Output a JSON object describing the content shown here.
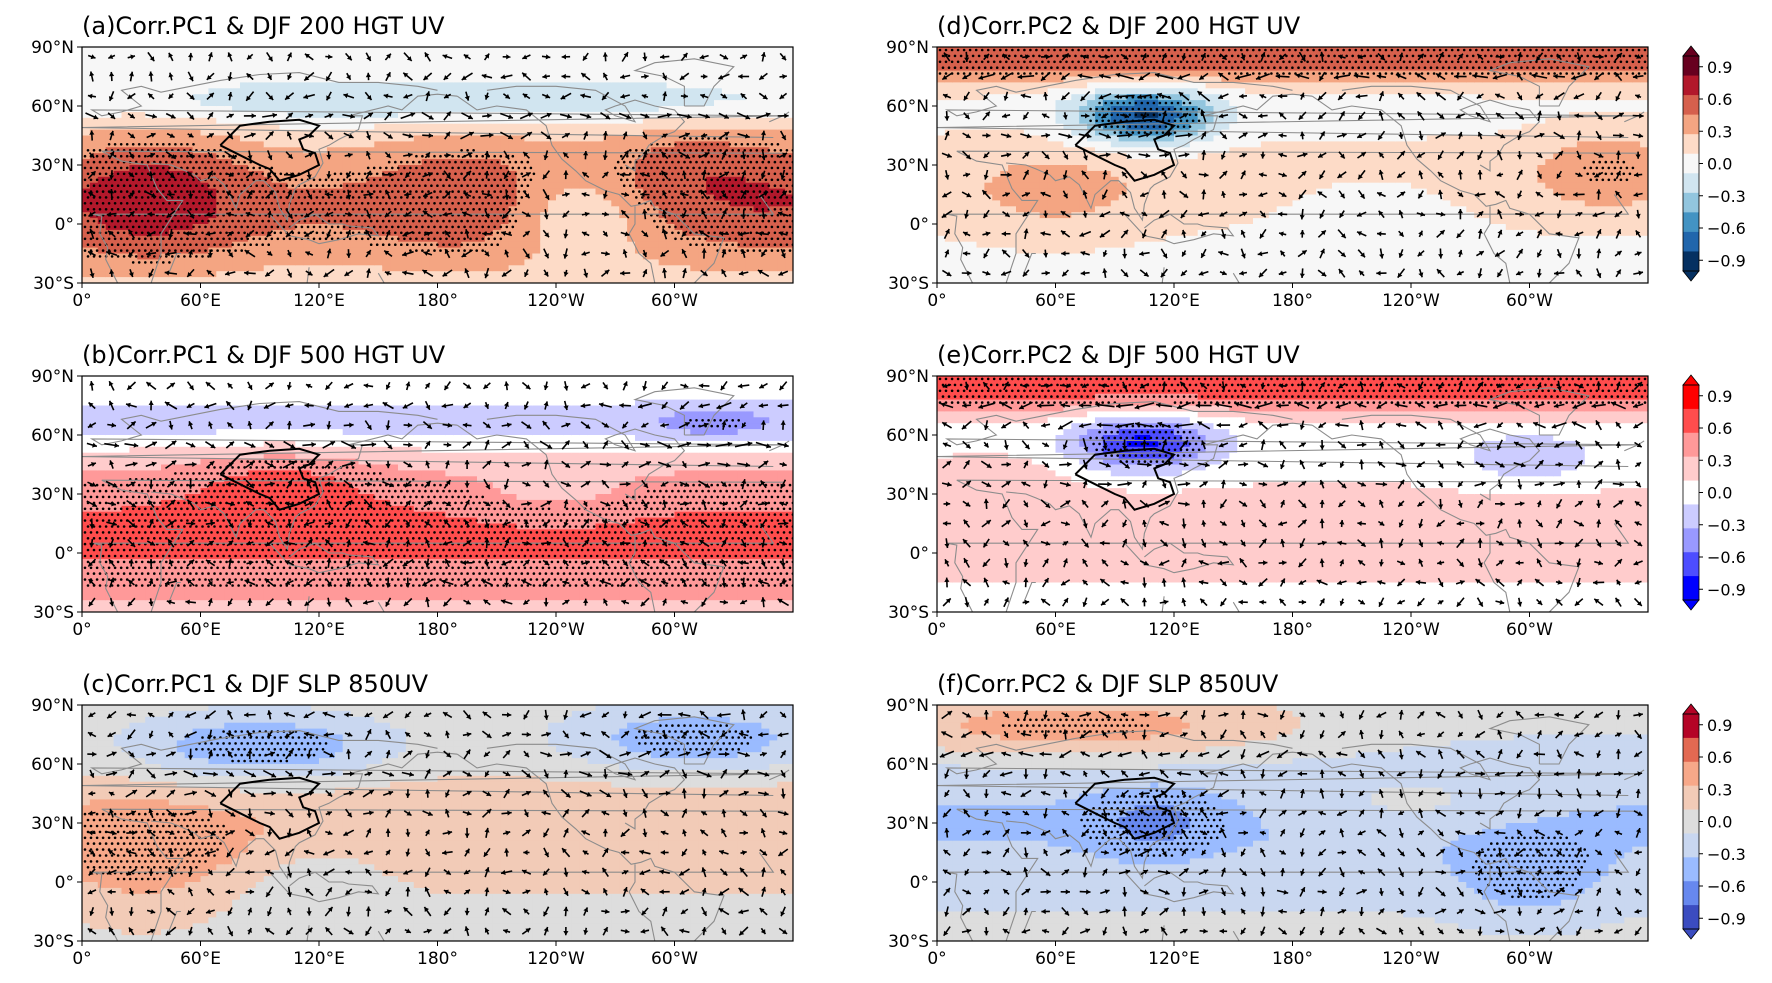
{
  "figure": {
    "panels": [
      {
        "id": "a",
        "title": "(a)Corr.PC1 & DJF 200 HGT UV",
        "scheme": "rdbu",
        "field": "pc1_200"
      },
      {
        "id": "b",
        "title": "(b)Corr.PC1 & DJF 500 HGT UV",
        "scheme": "bwr",
        "field": "pc1_500"
      },
      {
        "id": "c",
        "title": "(c)Corr.PC1 & DJF SLP 850UV",
        "scheme": "coolwarm",
        "field": "pc1_slp"
      },
      {
        "id": "d",
        "title": "(d)Corr.PC2 & DJF 200 HGT UV",
        "scheme": "rdbu",
        "field": "pc2_200"
      },
      {
        "id": "e",
        "title": "(e)Corr.PC2 & DJF 500 HGT UV",
        "scheme": "bwr",
        "field": "pc2_500"
      },
      {
        "id": "f",
        "title": "(f)Corr.PC2 & DJF SLP 850UV",
        "scheme": "coolwarm",
        "field": "pc2_slp"
      }
    ],
    "lat_ticks": [
      "90°N",
      "60°N",
      "30°N",
      "0°",
      "30°S"
    ],
    "lon_ticks": [
      "0°",
      "60°E",
      "120°E",
      "180°",
      "120°W",
      "60°W"
    ],
    "colorbars": [
      {
        "scheme": "rdbu",
        "ticks": [
          "0.9",
          "0.6",
          "0.3",
          "0.0",
          "−0.3",
          "−0.6",
          "−0.9"
        ]
      },
      {
        "scheme": "bwr",
        "ticks": [
          "0.9",
          "0.6",
          "0.3",
          "0.0",
          "−0.3",
          "−0.6",
          "−0.9"
        ]
      },
      {
        "scheme": "coolwarm",
        "ticks": [
          "0.9",
          "0.6",
          "0.3",
          "0.0",
          "−0.3",
          "−0.6",
          "−0.9"
        ]
      }
    ],
    "colors": {
      "rdbu": [
        "#053061",
        "#2166ac",
        "#4393c3",
        "#92c5de",
        "#d1e5f0",
        "#f7f7f7",
        "#fddbc7",
        "#f4a582",
        "#d6604d",
        "#b2182b",
        "#67001f"
      ],
      "bwr": [
        "#0000ff",
        "#4d4dff",
        "#9999ff",
        "#ccccff",
        "#ffffff",
        "#ffcccc",
        "#ff9999",
        "#ff4d4d",
        "#ff0000"
      ],
      "coolwarm": [
        "#3b4cc0",
        "#6788ee",
        "#9abbff",
        "#c9d7f0",
        "#dddddd",
        "#f2cbb7",
        "#f7a889",
        "#e26952",
        "#b40426"
      ],
      "coast": "#8c8c8c",
      "region": "#000000",
      "arrow": "#000000"
    }
  }
}
